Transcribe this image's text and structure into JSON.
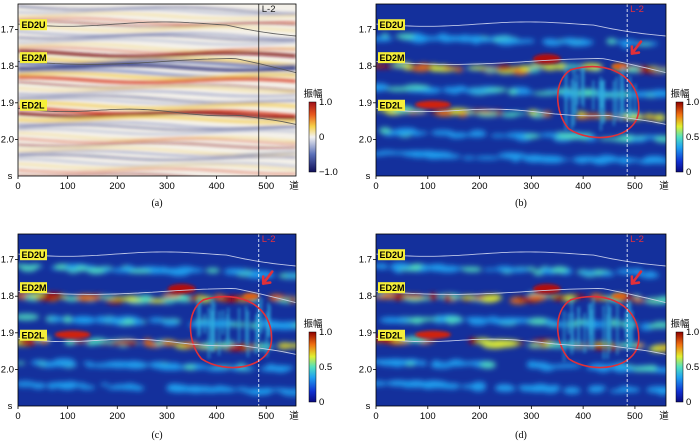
{
  "panels": [
    {
      "id": "a",
      "caption": "(a)",
      "horizons": [
        "ED2U",
        "ED2M",
        "ED2L"
      ],
      "well_label": "L-2",
      "colorbar_title": "振幅",
      "colorbar_ticks": [
        "1.0",
        "0",
        "−1.0"
      ],
      "colormap": "seismic"
    },
    {
      "id": "b",
      "caption": "(b)",
      "horizons": [
        "ED2U",
        "ED2M",
        "ED2L"
      ],
      "well_label": "L-2",
      "colorbar_title": "振幅",
      "colorbar_ticks": [
        "1.0",
        "0.5",
        "0"
      ],
      "colormap": "jet"
    },
    {
      "id": "c",
      "caption": "(c)",
      "horizons": [
        "ED2U",
        "ED2M",
        "ED2L"
      ],
      "well_label": "L-2",
      "colorbar_title": "振幅",
      "colorbar_ticks": [
        "1.0",
        "0.5",
        "0"
      ],
      "colormap": "jet"
    },
    {
      "id": "d",
      "caption": "(d)",
      "horizons": [
        "ED2U",
        "ED2M",
        "ED2L"
      ],
      "well_label": "L-2",
      "colorbar_title": "振幅",
      "colorbar_ticks": [
        "1.0",
        "0.5",
        "0"
      ],
      "colormap": "jet"
    }
  ],
  "axes": {
    "x_ticks": [
      "0",
      "100",
      "200",
      "300",
      "400",
      "500"
    ],
    "x_unit": "道",
    "y_ticks": [
      "1.7",
      "1.8",
      "1.9",
      "2.0"
    ],
    "y_unit": "s",
    "x_range": [
      0,
      560
    ],
    "y_range": [
      1.63,
      2.1
    ]
  },
  "colors": {
    "horizon_label_bg": "#f5ef3a",
    "highlight_circle": "#e0303a",
    "arrow": "#e0303a",
    "jet_background": "#14309c"
  }
}
